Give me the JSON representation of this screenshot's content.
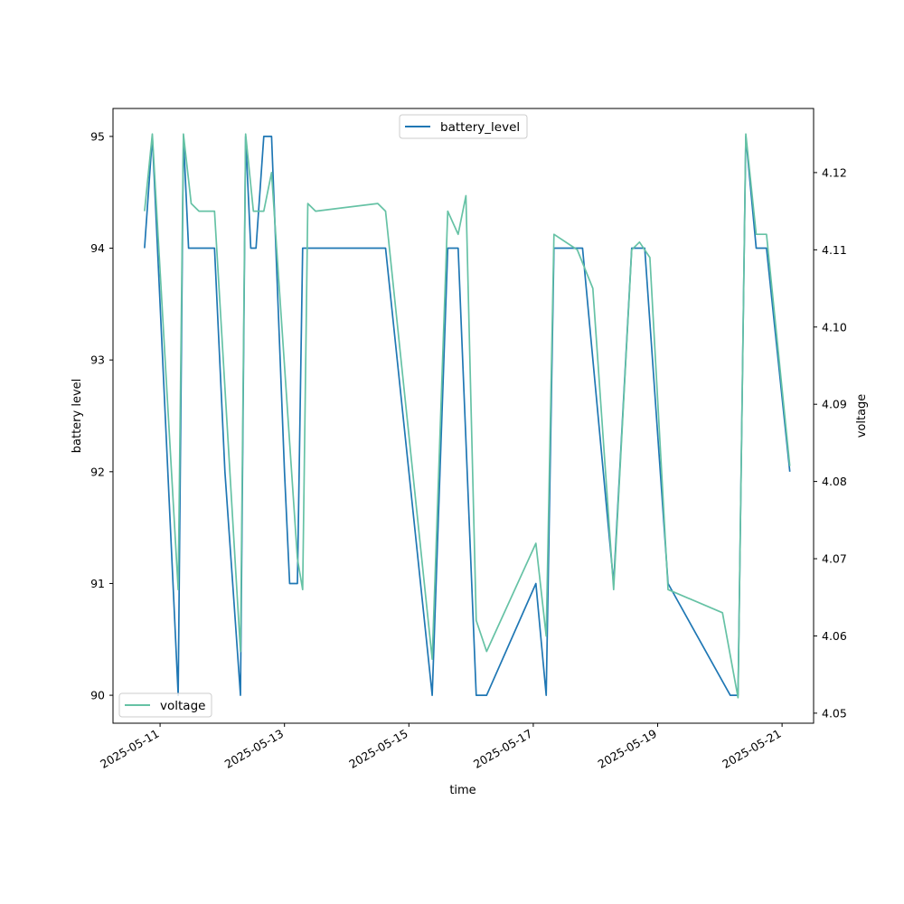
{
  "chart_data": {
    "type": "line",
    "xlabel": "time",
    "ylabel_left": "battery level",
    "ylabel_right": "voltage",
    "x_range": [
      "2025-05-10T05:50",
      "2025-05-21T12:10"
    ],
    "x_ticks": [
      "2025-05-11",
      "2025-05-13",
      "2025-05-15",
      "2025-05-17",
      "2025-05-19",
      "2025-05-21"
    ],
    "y_left_range": [
      89.75,
      95.25
    ],
    "y_left_ticks": [
      90,
      91,
      92,
      93,
      94,
      95
    ],
    "y_right_range": [
      4.0487,
      4.1283
    ],
    "y_right_ticks": [
      "4.05",
      "4.06",
      "4.07",
      "4.08",
      "4.09",
      "4.10",
      "4.11",
      "4.12"
    ],
    "grid": false,
    "series": [
      {
        "name": "battery_level",
        "axis": "left",
        "color": "#1f77b4",
        "legend_position": "top-center",
        "x": [
          "2025-05-10T18:00",
          "2025-05-10T21:00",
          "2025-05-11T07:00",
          "2025-05-11T09:00",
          "2025-05-11T11:00",
          "2025-05-11T21:00",
          "2025-05-12T01:00",
          "2025-05-12T07:00",
          "2025-05-12T09:00",
          "2025-05-12T11:00",
          "2025-05-12T13:00",
          "2025-05-12T16:00",
          "2025-05-12T19:00",
          "2025-05-13T00:00",
          "2025-05-13T02:00",
          "2025-05-13T05:00",
          "2025-05-13T07:00",
          "2025-05-14T15:00",
          "2025-05-15T09:00",
          "2025-05-15T15:00",
          "2025-05-15T19:00",
          "2025-05-16T02:00",
          "2025-05-16T06:00",
          "2025-05-17T01:00",
          "2025-05-17T05:00",
          "2025-05-17T08:00",
          "2025-05-17T19:00",
          "2025-05-18T07:00",
          "2025-05-18T14:00",
          "2025-05-18T19:00",
          "2025-05-19T04:00",
          "2025-05-20T04:00",
          "2025-05-20T07:00",
          "2025-05-20T10:00",
          "2025-05-20T14:00",
          "2025-05-20T18:00",
          "2025-05-21T03:00"
        ],
        "values": [
          94,
          95,
          90,
          95,
          94,
          94,
          92,
          90,
          95,
          94,
          94,
          95,
          95,
          92,
          91,
          91,
          94,
          94,
          90,
          94,
          94,
          90,
          90,
          91,
          90,
          94,
          94,
          91,
          94,
          94,
          91,
          90,
          90,
          95,
          94,
          94,
          92
        ]
      },
      {
        "name": "voltage",
        "axis": "right",
        "color": "#66c2a5",
        "legend_position": "bottom-left",
        "x": [
          "2025-05-10T18:00",
          "2025-05-10T21:00",
          "2025-05-11T07:00",
          "2025-05-11T09:00",
          "2025-05-11T12:00",
          "2025-05-11T15:00",
          "2025-05-11T21:00",
          "2025-05-12T07:00",
          "2025-05-12T09:00",
          "2025-05-12T12:00",
          "2025-05-12T16:00",
          "2025-05-12T19:00",
          "2025-05-13T05:00",
          "2025-05-13T07:00",
          "2025-05-13T09:00",
          "2025-05-13T12:00",
          "2025-05-14T12:00",
          "2025-05-14T15:00",
          "2025-05-15T09:00",
          "2025-05-15T15:00",
          "2025-05-15T19:00",
          "2025-05-15T22:00",
          "2025-05-16T02:00",
          "2025-05-16T06:00",
          "2025-05-17T01:00",
          "2025-05-17T05:00",
          "2025-05-17T08:00",
          "2025-05-17T17:00",
          "2025-05-17T23:00",
          "2025-05-18T07:00",
          "2025-05-18T14:00",
          "2025-05-18T17:00",
          "2025-05-18T21:00",
          "2025-05-19T04:00",
          "2025-05-20T01:00",
          "2025-05-20T07:00",
          "2025-05-20T10:00",
          "2025-05-20T14:00",
          "2025-05-20T18:00",
          "2025-05-21T03:00"
        ],
        "values": [
          4.115,
          4.125,
          4.066,
          4.125,
          4.116,
          4.115,
          4.115,
          4.058,
          4.125,
          4.115,
          4.115,
          4.12,
          4.07,
          4.066,
          4.116,
          4.115,
          4.116,
          4.115,
          4.057,
          4.115,
          4.112,
          4.117,
          4.062,
          4.058,
          4.072,
          4.06,
          4.112,
          4.11,
          4.105,
          4.066,
          4.11,
          4.111,
          4.109,
          4.066,
          4.063,
          4.052,
          4.125,
          4.112,
          4.112,
          4.082
        ]
      }
    ]
  }
}
